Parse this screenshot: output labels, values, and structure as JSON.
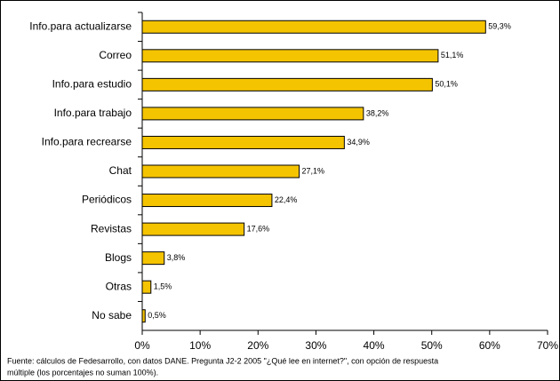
{
  "chart_data": {
    "type": "bar",
    "orientation": "horizontal",
    "categories": [
      "Info.para actualizarse",
      "Correo",
      "Info.para estudio",
      "Info.para trabajo",
      "Info.para recrearse",
      "Chat",
      "Periódicos",
      "Revistas",
      "Blogs",
      "Otras",
      "No sabe"
    ],
    "values": [
      59.3,
      51.1,
      50.1,
      38.2,
      34.9,
      27.1,
      22.4,
      17.6,
      3.8,
      1.5,
      0.5
    ],
    "value_labels": [
      "59,3%",
      "51,1%",
      "50,1%",
      "38,2%",
      "34,9%",
      "27,1%",
      "22,4%",
      "17,6%",
      "3,8%",
      "1,5%",
      "0,5%"
    ],
    "color": "#f5c400",
    "xlim": [
      0,
      70
    ],
    "xticks": [
      {
        "value": 0,
        "label": "0%"
      },
      {
        "value": 10,
        "label": "10%"
      },
      {
        "value": 20,
        "label": "20%"
      },
      {
        "value": 30,
        "label": "30%"
      },
      {
        "value": 40,
        "label": "40%"
      },
      {
        "value": 50,
        "label": "50%"
      },
      {
        "value": 60,
        "label": "60%"
      },
      {
        "value": 70,
        "label": "70%"
      }
    ],
    "source": [
      "Fuente: cálculos de Fedesarrollo, con datos DANE. Pregunta J2-2 2005 \"¿Qué lee en internet?\", con opción de respuesta",
      "múltiple (los porcentajes no suman 100%)."
    ]
  }
}
